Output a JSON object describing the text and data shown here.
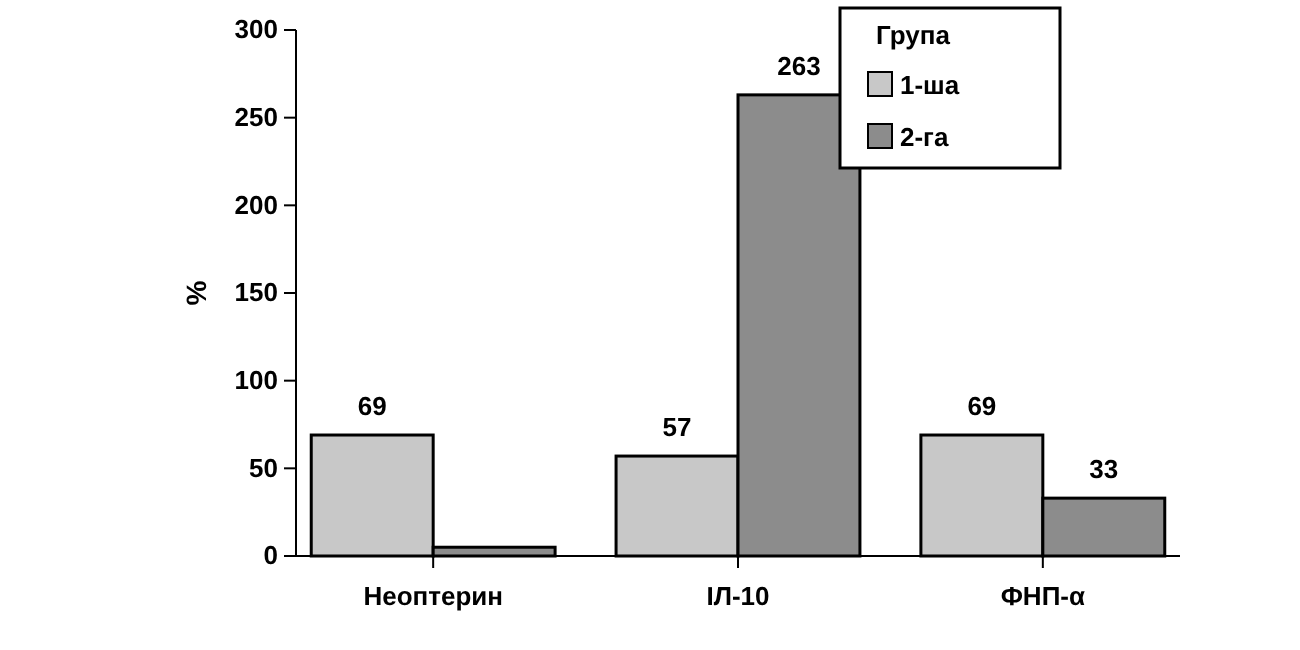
{
  "chart_data": {
    "type": "bar",
    "ylabel": "%",
    "legend_title": "Група",
    "legend": "top right",
    "grid": false,
    "categories": [
      "Неоптерин",
      "ІЛ-10",
      "ФНП-α"
    ],
    "series": [
      {
        "name": "1-ша",
        "color": "#c8c8c8",
        "values": [
          69,
          57,
          69
        ],
        "value_labels": [
          "69",
          "57",
          "69"
        ]
      },
      {
        "name": "2-га",
        "color": "#8c8c8c",
        "values": [
          5,
          263,
          33
        ],
        "value_labels": [
          null,
          "263",
          "33"
        ]
      }
    ],
    "ylim": [
      0,
      300
    ],
    "yticks": [
      0,
      50,
      100,
      150,
      200,
      250,
      300
    ]
  }
}
